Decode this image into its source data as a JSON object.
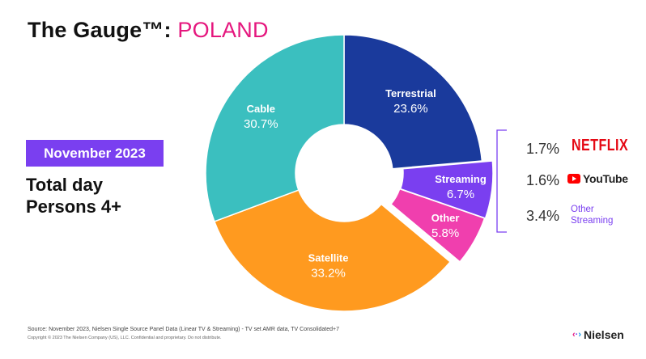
{
  "header": {
    "title_prefix": "The Gauge™: ",
    "title_country": "POLAND"
  },
  "period_badge": "November 2023",
  "daypart": "Total day",
  "audience": "Persons 4+",
  "chart_data": {
    "type": "pie",
    "donut": true,
    "slices": [
      {
        "name": "Terrestrial",
        "value": 23.6,
        "label": "23.6%",
        "color": "#1a3a9c"
      },
      {
        "name": "Streaming",
        "value": 6.7,
        "label": "6.7%",
        "color": "#7a3ff0"
      },
      {
        "name": "Other",
        "value": 5.8,
        "label": "5.8%",
        "color": "#f03fae"
      },
      {
        "name": "Satellite",
        "value": 33.2,
        "label": "33.2%",
        "color": "#ff9a1f"
      },
      {
        "name": "Cable",
        "value": 30.7,
        "label": "30.7%",
        "color": "#3bbfbf"
      }
    ],
    "streaming_breakdown": [
      {
        "name": "NETFLIX",
        "label": "1.7%",
        "value": 1.7
      },
      {
        "name": "YouTube",
        "label": "1.6%",
        "value": 1.6
      },
      {
        "name": "Other Streaming",
        "label": "3.4%",
        "value": 3.4
      }
    ]
  },
  "breakdown_labels": {
    "netflix": "NETFLIX",
    "youtube": "YouTube",
    "other_streaming_line1": "Other",
    "other_streaming_line2": "Streaming"
  },
  "footer": {
    "source": "Source: November  2023, Nielsen Single Source Panel Data (Linear TV & Streaming) - TV set AMR data, TV Consolidated+7",
    "copyright": "Copyright © 2023 The Nielsen Company (US), LLC. Confidential and proprietary. Do not distribute.",
    "brand": "Nielsen"
  },
  "icons": {
    "netflix_logo": "netflix-logo",
    "youtube_logo": "youtube-play-icon",
    "nielsen_logo": "nielsen-arrows-icon"
  }
}
